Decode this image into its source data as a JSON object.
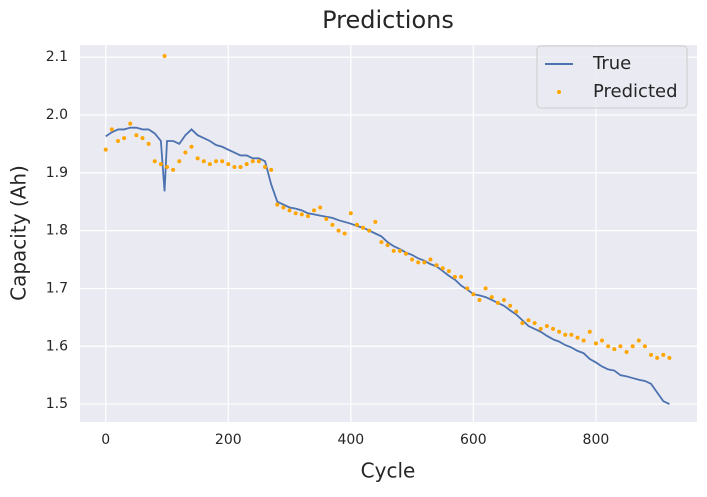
{
  "chart_data": {
    "type": "line",
    "title": "Predictions",
    "x_label": "Cycle",
    "y_label": "Capacity (Ah)",
    "x": [
      0,
      10,
      20,
      30,
      40,
      50,
      60,
      70,
      80,
      90,
      96,
      100,
      110,
      120,
      130,
      140,
      150,
      160,
      170,
      180,
      190,
      200,
      210,
      220,
      230,
      240,
      250,
      260,
      270,
      280,
      290,
      300,
      310,
      320,
      330,
      340,
      350,
      360,
      370,
      380,
      390,
      400,
      410,
      420,
      430,
      440,
      450,
      460,
      470,
      480,
      490,
      500,
      510,
      520,
      530,
      540,
      550,
      560,
      570,
      580,
      590,
      600,
      610,
      620,
      630,
      640,
      650,
      660,
      670,
      680,
      690,
      700,
      710,
      720,
      730,
      740,
      750,
      760,
      770,
      780,
      790,
      800,
      810,
      820,
      830,
      840,
      850,
      860,
      870,
      880,
      890,
      900,
      910,
      920
    ],
    "series": [
      {
        "name": "True",
        "type": "line",
        "color": "#4c72b0",
        "values": [
          1.963,
          1.97,
          1.975,
          1.975,
          1.978,
          1.978,
          1.975,
          1.975,
          1.968,
          1.955,
          1.868,
          1.955,
          1.955,
          1.95,
          1.965,
          1.975,
          1.965,
          1.96,
          1.955,
          1.948,
          1.945,
          1.94,
          1.935,
          1.93,
          1.93,
          1.925,
          1.925,
          1.92,
          1.88,
          1.85,
          1.845,
          1.84,
          1.838,
          1.835,
          1.83,
          1.828,
          1.826,
          1.824,
          1.822,
          1.818,
          1.815,
          1.812,
          1.808,
          1.805,
          1.8,
          1.795,
          1.79,
          1.78,
          1.773,
          1.768,
          1.762,
          1.758,
          1.752,
          1.748,
          1.742,
          1.738,
          1.73,
          1.722,
          1.715,
          1.705,
          1.698,
          1.69,
          1.688,
          1.685,
          1.68,
          1.675,
          1.67,
          1.662,
          1.655,
          1.645,
          1.635,
          1.63,
          1.625,
          1.618,
          1.612,
          1.608,
          1.602,
          1.598,
          1.592,
          1.588,
          1.578,
          1.572,
          1.565,
          1.56,
          1.558,
          1.55,
          1.548,
          1.545,
          1.542,
          1.54,
          1.535,
          1.52,
          1.505,
          1.5
        ]
      },
      {
        "name": "Predicted",
        "type": "scatter",
        "color": "#ffa500",
        "values": [
          1.94,
          1.975,
          1.955,
          1.96,
          1.985,
          1.965,
          1.96,
          1.95,
          1.92,
          1.915,
          2.102,
          1.91,
          1.905,
          1.92,
          1.935,
          1.945,
          1.925,
          1.92,
          1.915,
          1.92,
          1.92,
          1.915,
          1.91,
          1.91,
          1.915,
          1.92,
          1.92,
          1.91,
          1.905,
          1.845,
          1.84,
          1.835,
          1.83,
          1.828,
          1.825,
          1.835,
          1.84,
          1.82,
          1.81,
          1.8,
          1.795,
          1.83,
          1.81,
          1.805,
          1.8,
          1.815,
          1.78,
          1.775,
          1.765,
          1.765,
          1.76,
          1.75,
          1.745,
          1.745,
          1.75,
          1.74,
          1.735,
          1.73,
          1.72,
          1.72,
          1.7,
          1.69,
          1.68,
          1.7,
          1.685,
          1.675,
          1.68,
          1.67,
          1.66,
          1.64,
          1.645,
          1.64,
          1.63,
          1.635,
          1.63,
          1.625,
          1.62,
          1.62,
          1.615,
          1.61,
          1.625,
          1.605,
          1.61,
          1.6,
          1.595,
          1.6,
          1.59,
          1.6,
          1.61,
          1.6,
          1.585,
          1.58,
          1.585,
          1.58
        ]
      }
    ],
    "xlim": [
      -42,
      965
    ],
    "ylim": [
      1.469,
      2.121
    ],
    "xticks": [
      0,
      200,
      400,
      600,
      800
    ],
    "yticks": [
      1.5,
      1.6,
      1.7,
      1.8,
      1.9,
      {
        "value": 2,
        "label": "2.0"
      },
      2.1
    ],
    "grid": true,
    "legend": "upper right"
  }
}
